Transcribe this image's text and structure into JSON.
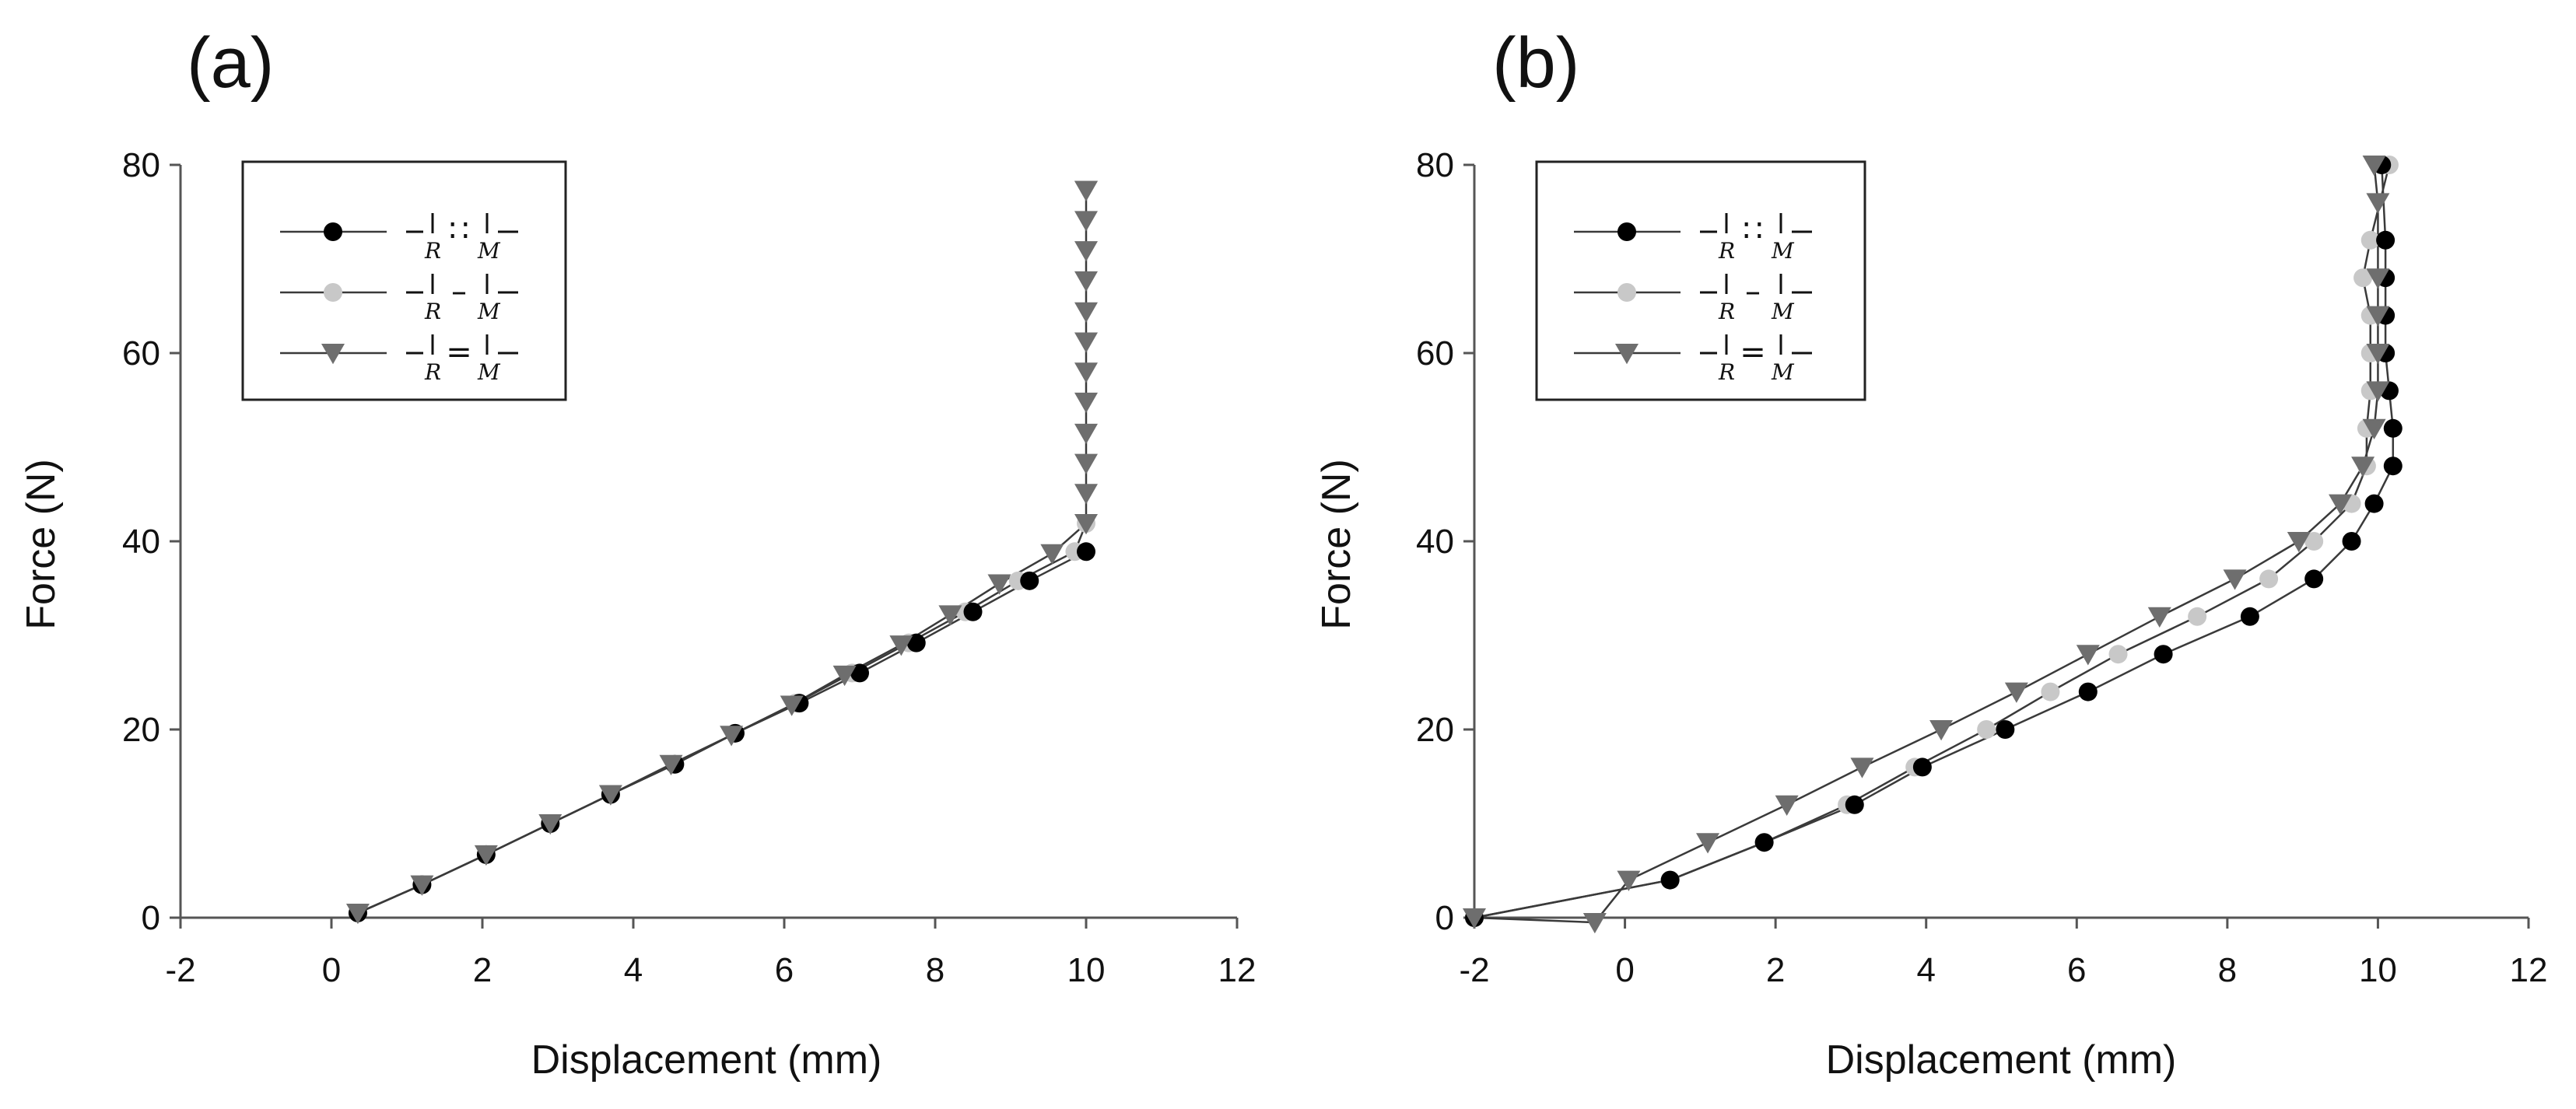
{
  "colors": {
    "black": "#000000",
    "light_gray": "#c8c8c8",
    "dark_gray": "#6e6e6e",
    "line": "#444444"
  },
  "legend": {
    "entries": [
      {
        "series": 0,
        "left": "R",
        "connector": "∷",
        "right": "M",
        "marker": "circle",
        "color": "#000000"
      },
      {
        "series": 1,
        "left": "R",
        "connector": "–",
        "right": "M",
        "marker": "circle",
        "color": "#c8c8c8"
      },
      {
        "series": 2,
        "left": "R",
        "connector": "=",
        "right": "M",
        "marker": "triangle-down",
        "color": "#6e6e6e"
      }
    ]
  },
  "chart_data": [
    {
      "type": "line",
      "panel_label": "(a)",
      "xlabel": "Displacement (mm)",
      "ylabel": "Force (N)",
      "xlim": [
        -2,
        12
      ],
      "ylim": [
        0,
        80
      ],
      "xticks": [
        -2,
        0,
        2,
        4,
        6,
        8,
        10,
        12
      ],
      "yticks": [
        0,
        20,
        40,
        60,
        80
      ],
      "legend_position": "top-left",
      "series": [
        {
          "name": "R∷M",
          "marker": "circle",
          "color": "#000000",
          "x": [
            0.35,
            1.2,
            2.05,
            2.9,
            3.7,
            4.55,
            5.35,
            6.2,
            7.0,
            7.75,
            8.5,
            9.25,
            10.0
          ],
          "y": [
            0.5,
            3.5,
            6.7,
            10.0,
            13.1,
            16.3,
            19.6,
            22.8,
            26.0,
            29.2,
            32.5,
            35.8,
            38.9
          ]
        },
        {
          "name": "R–M",
          "marker": "circle",
          "color": "#c8c8c8",
          "x": [
            0.35,
            1.2,
            2.05,
            2.9,
            3.7,
            4.55,
            5.35,
            6.15,
            6.9,
            7.65,
            8.4,
            9.1,
            9.85,
            10.0
          ],
          "y": [
            0.5,
            3.5,
            6.7,
            10.0,
            13.1,
            16.3,
            19.6,
            22.8,
            26.0,
            29.2,
            32.5,
            35.8,
            38.9,
            41.9
          ]
        },
        {
          "name": "R=M",
          "marker": "triangle-down",
          "color": "#6e6e6e",
          "x": [
            0.35,
            1.2,
            2.05,
            2.9,
            3.7,
            4.5,
            5.3,
            6.1,
            6.8,
            7.55,
            8.2,
            8.85,
            9.55,
            10.0,
            10.0,
            10.0,
            10.0,
            10.0,
            10.0,
            10.0,
            10.0,
            10.0,
            10.0,
            10.0,
            10.0,
            10.0
          ],
          "y": [
            0.5,
            3.5,
            6.7,
            10.0,
            13.1,
            16.3,
            19.4,
            22.6,
            25.8,
            29.0,
            32.2,
            35.5,
            38.7,
            41.9,
            45.1,
            48.3,
            51.5,
            54.8,
            58.0,
            61.2,
            64.4,
            67.7,
            70.9,
            74.1,
            77.3,
            77.3
          ]
        }
      ]
    },
    {
      "type": "line",
      "panel_label": "(b)",
      "xlabel": "Displacement (mm)",
      "ylabel": "Force (N)",
      "xlim": [
        -2,
        12
      ],
      "ylim": [
        0,
        80
      ],
      "xticks": [
        -2,
        0,
        2,
        4,
        6,
        8,
        10,
        12
      ],
      "yticks": [
        0,
        20,
        40,
        60,
        80
      ],
      "legend_position": "top-left",
      "series": [
        {
          "name": "R∷M",
          "marker": "circle",
          "color": "#000000",
          "x": [
            -2.0,
            0.6,
            1.85,
            3.05,
            3.95,
            5.05,
            6.15,
            7.15,
            8.3,
            9.15,
            9.65,
            9.95,
            10.2,
            10.2,
            10.15,
            10.1,
            10.1,
            10.1,
            10.1,
            10.05
          ],
          "y": [
            0,
            4,
            8,
            12,
            16,
            20,
            24,
            28,
            32,
            36,
            40,
            44,
            48,
            52,
            56,
            60,
            64,
            68,
            72,
            80
          ]
        },
        {
          "name": "R–M",
          "marker": "circle",
          "color": "#c8c8c8",
          "x": [
            -2.0,
            0.6,
            1.85,
            2.95,
            3.85,
            4.8,
            5.65,
            6.55,
            7.6,
            8.55,
            9.15,
            9.65,
            9.85,
            9.85,
            9.9,
            9.9,
            9.9,
            9.8,
            9.9,
            10.15
          ],
          "y": [
            0,
            4,
            8,
            12,
            16,
            20,
            24,
            28,
            32,
            36,
            40,
            44,
            48,
            52,
            56,
            60,
            64,
            68,
            72,
            80
          ]
        },
        {
          "name": "R=M",
          "marker": "triangle-down",
          "color": "#6e6e6e",
          "x": [
            -2.0,
            -0.4,
            0.05,
            1.1,
            2.15,
            3.15,
            4.2,
            5.2,
            6.15,
            7.1,
            8.1,
            8.95,
            9.5,
            9.8,
            9.95,
            10.0,
            10.0,
            10.0,
            10.0,
            10.0,
            9.95
          ],
          "y": [
            0,
            -0.5,
            4,
            8,
            12,
            16,
            20,
            24,
            28,
            32,
            36,
            40,
            44,
            48,
            52,
            56,
            60,
            64,
            68,
            76,
            80
          ]
        }
      ]
    }
  ]
}
